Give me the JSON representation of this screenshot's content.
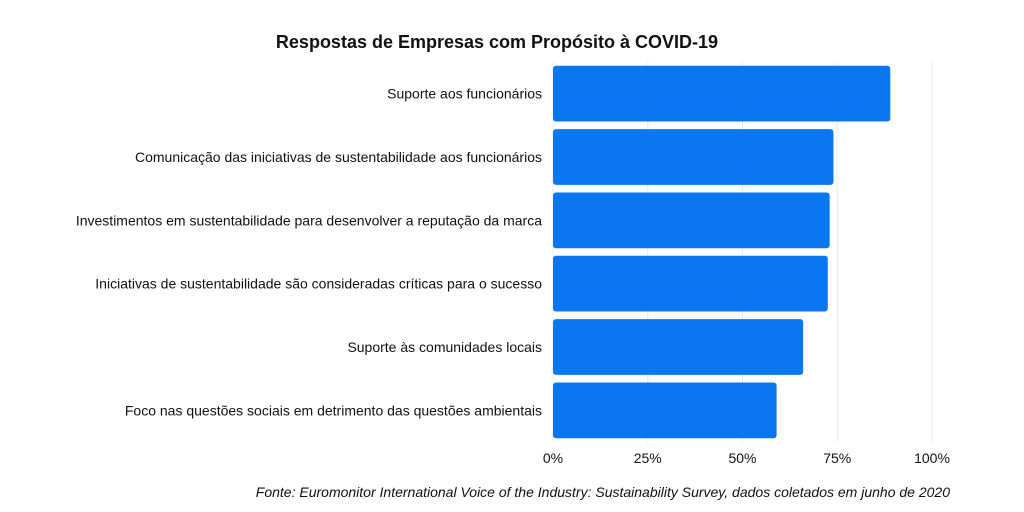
{
  "chart_data": {
    "type": "bar",
    "orientation": "horizontal",
    "title": "Respostas de Empresas com Propósito à COVID-19",
    "categories": [
      "Suporte aos funcionários",
      "Comunicação das iniciativas de sustentabilidade aos funcionários",
      "Investimentos em sustentabilidade para desenvolver a reputação da marca",
      "Iniciativas de sustentabilidade são consideradas críticas para o sucesso",
      "Suporte às comunidades locais",
      "Foco nas questões sociais em detrimento das questões ambientais"
    ],
    "values": [
      89,
      74,
      73,
      72.5,
      66,
      59
    ],
    "xlim": [
      0,
      100
    ],
    "x_ticks": [
      0,
      25,
      50,
      75,
      100
    ],
    "x_tick_labels": [
      "0%",
      "25%",
      "50%",
      "75%",
      "100%"
    ],
    "xlabel": "",
    "ylabel": "",
    "grid": true,
    "legend": "none",
    "bar_color": "#0a77f0",
    "source": "Fonte: Euromonitor International Voice of the Industry: Sustainability Survey, dados coletados em junho de 2020"
  }
}
